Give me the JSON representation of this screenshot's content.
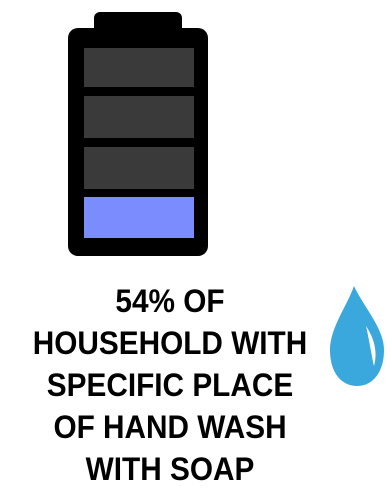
{
  "infographic": {
    "headline_lines": [
      "54% OF",
      "HOUSEHOLD WITH",
      "SPECIFIC PLACE",
      "OF HAND WASH",
      "WITH SOAP"
    ],
    "percent_value": 54
  },
  "battery": {
    "segments_total": 4,
    "segments_filled": 1,
    "filled_color": "#7b8cff",
    "empty_color": "#3a3a3a",
    "frame_color": "#000000",
    "icon": "battery-level-icon"
  },
  "drop": {
    "icon": "water-drop-icon",
    "color": "#3aa8dc"
  }
}
